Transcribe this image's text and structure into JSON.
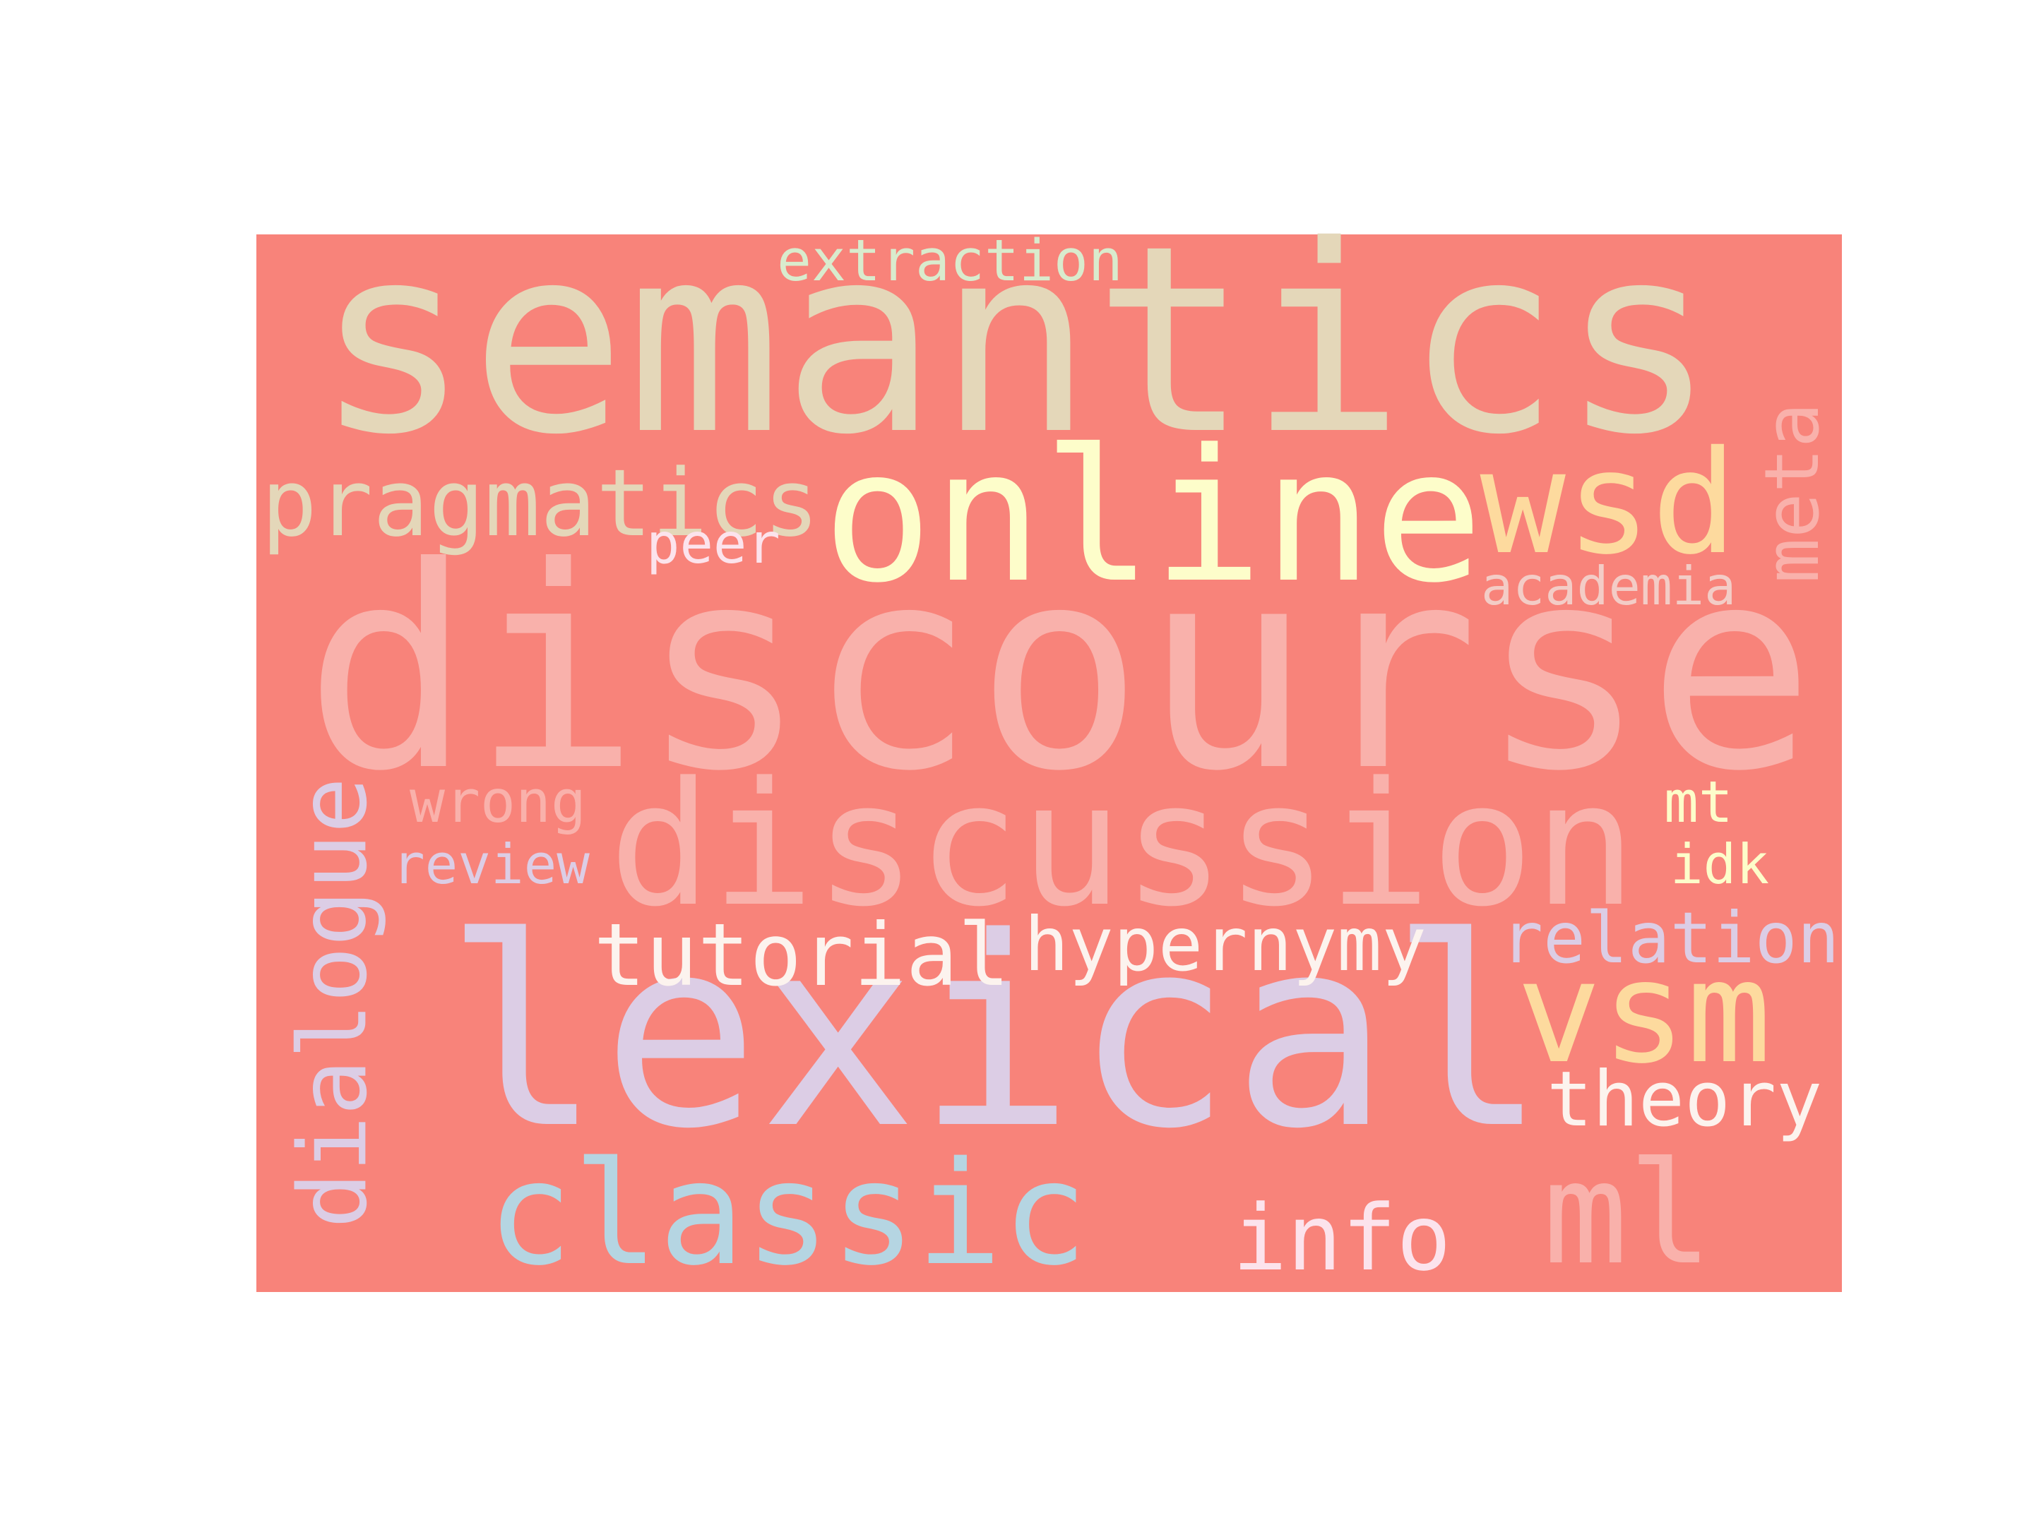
{
  "background_color": "#F8837A",
  "page_color": "#FFFFFF",
  "words": [
    {
      "text": "semantics",
      "color": "#E4D7B9"
    },
    {
      "text": "discourse",
      "color": "#F9B1AB"
    },
    {
      "text": "lexical",
      "color": "#DCCDE5"
    },
    {
      "text": "online",
      "color": "#FDFDCA"
    },
    {
      "text": "wsd",
      "color": "#FDDA9E"
    },
    {
      "text": "discussion",
      "color": "#F9B1AB"
    },
    {
      "text": "classic",
      "color": "#B5D5E2"
    },
    {
      "text": "pragmatics",
      "color": "#E4D7B9"
    },
    {
      "text": "ml",
      "color": "#F9B1AB"
    },
    {
      "text": "vsm",
      "color": "#FDDA9E"
    },
    {
      "text": "dialogue",
      "color": "#DCCDE5"
    },
    {
      "text": "meta",
      "color": "#F9B1AB"
    },
    {
      "text": "info",
      "color": "#FCE3EC"
    },
    {
      "text": "tutorial",
      "color": "#FCF3EE"
    },
    {
      "text": "hypernymy",
      "color": "#FCF3EE"
    },
    {
      "text": "theory",
      "color": "#FCF3EE"
    },
    {
      "text": "relation",
      "color": "#DCCDE5"
    },
    {
      "text": "extraction",
      "color": "#D9EBCD"
    },
    {
      "text": "academia",
      "color": "#F3CCC6"
    },
    {
      "text": "mt",
      "color": "#FDFDCA"
    },
    {
      "text": "idk",
      "color": "#FDFDCA"
    },
    {
      "text": "peer",
      "color": "#FCE3EC"
    },
    {
      "text": "review",
      "color": "#DCCDE5"
    },
    {
      "text": "wrong",
      "color": "#F9B1AB"
    }
  ]
}
